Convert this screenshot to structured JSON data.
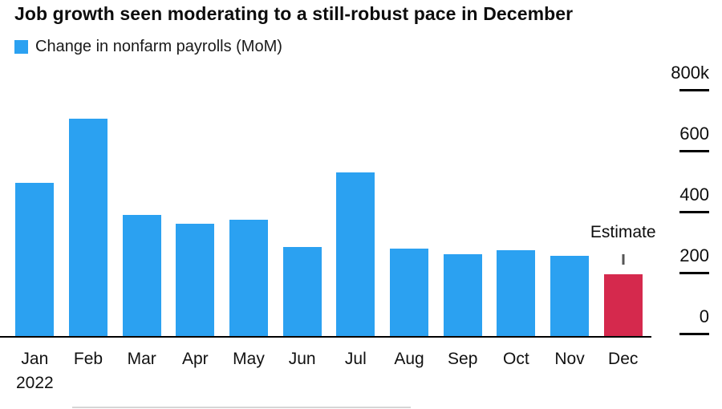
{
  "title": "Job growth seen moderating to a still-robust pace in December",
  "legend": {
    "label": "Change in nonfarm payrolls (MoM)"
  },
  "colors": {
    "bar_blue": "#2ba1f1",
    "bar_red": "#d5294d",
    "axis": "#000000",
    "text": "#0d0d0d"
  },
  "chart_data": {
    "type": "bar",
    "title": "Job growth seen moderating to a still-robust pace in December",
    "legend_label": "Change in nonfarm payrolls (MoM)",
    "legend_position": "top-left",
    "categories": [
      "Jan",
      "Feb",
      "Mar",
      "Apr",
      "May",
      "Jun",
      "Jul",
      "Aug",
      "Sep",
      "Oct",
      "Nov",
      "Dec"
    ],
    "x_axis_year_label": "2022",
    "values": [
      505,
      715,
      400,
      370,
      385,
      295,
      540,
      290,
      270,
      285,
      265,
      205
    ],
    "unit": "k",
    "xlabel": "",
    "ylabel": "",
    "ylim": [
      0,
      800
    ],
    "grid": false,
    "yticks": [
      {
        "value": 800,
        "label": "800k"
      },
      {
        "value": 600,
        "label": "600"
      },
      {
        "value": 400,
        "label": "400"
      },
      {
        "value": 200,
        "label": "200"
      },
      {
        "value": 0,
        "label": "0"
      }
    ],
    "y_axis_side": "right",
    "estimate": {
      "label": "Estimate",
      "category": "Dec",
      "bar_index": 11,
      "marker_value": 255
    },
    "bar_colors": {
      "default": "#2ba1f1",
      "estimate": "#d5294d"
    }
  }
}
